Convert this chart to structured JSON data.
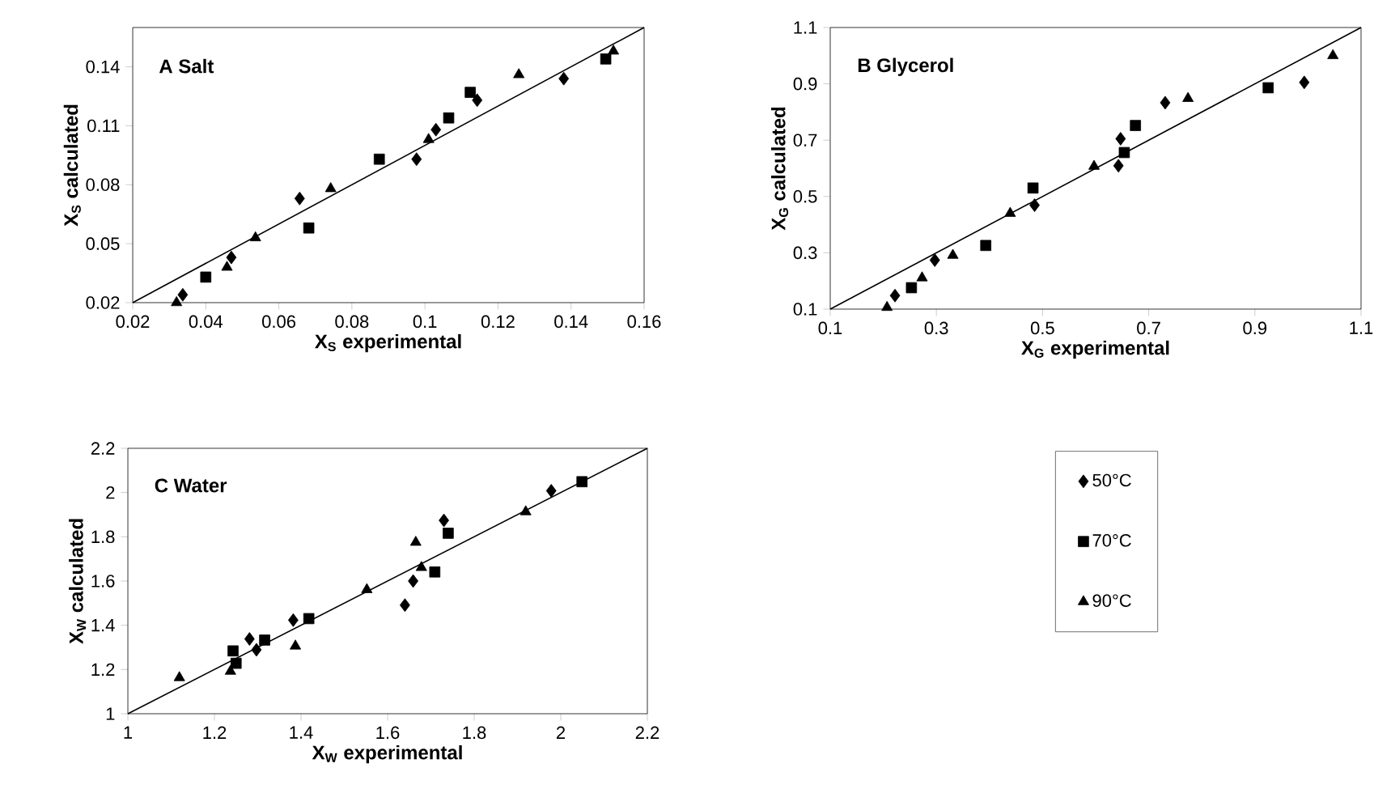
{
  "chart_data": [
    {
      "type": "scatter",
      "title": "A Salt",
      "xlabel": "X$_{S}$ experimental",
      "ylabel": "X$_{S}$ calculated",
      "xlim": [
        0.02,
        0.16
      ],
      "ylim": [
        0.02,
        0.16
      ],
      "xticks": [
        0.02,
        0.04,
        0.06,
        0.08,
        0.1,
        0.12,
        0.14,
        0.16
      ],
      "yticks": [
        0.02,
        0.05,
        0.08,
        0.11,
        0.14
      ],
      "series": [
        {
          "color": "#000000",
          "marker": "diamond",
          "x": [
            0.0337,
            0.047,
            0.0657,
            0.0977,
            0.103,
            0.1143,
            0.138
          ],
          "values": [
            0.024,
            0.043,
            0.073,
            0.093,
            0.108,
            0.123,
            0.134
          ]
        },
        {
          "color": "#000000",
          "marker": "square",
          "x": [
            0.04,
            0.0682,
            0.0875,
            0.1065,
            0.1124,
            0.1495
          ],
          "values": [
            0.033,
            0.058,
            0.093,
            0.114,
            0.127,
            0.144
          ]
        },
        {
          "color": "#000000",
          "marker": "triangle",
          "x": [
            0.032,
            0.0458,
            0.0536,
            0.0742,
            0.101,
            0.1257,
            0.1516
          ],
          "values": [
            0.02,
            0.038,
            0.053,
            0.078,
            0.103,
            0.136,
            0.148
          ]
        },
        {
          "type": "line",
          "color": "#000000",
          "marker": "none",
          "x": [
            0.02,
            0.16
          ],
          "values": [
            0.02,
            0.16
          ]
        }
      ]
    },
    {
      "type": "scatter",
      "title": "B Glycerol",
      "xlabel": "X$_{G}$ experimental",
      "ylabel": "X$_{G}$ calculated",
      "xlim": [
        0.1,
        1.1
      ],
      "ylim": [
        0.1,
        1.1
      ],
      "xticks": [
        0.1,
        0.3,
        0.5,
        0.7,
        0.9,
        1.1
      ],
      "yticks": [
        0.1,
        0.3,
        0.5,
        0.7,
        0.9,
        1.1
      ],
      "series": [
        {
          "color": "#000000",
          "marker": "diamond",
          "x": [
            0.222,
            0.297,
            0.485,
            0.643,
            0.647,
            0.731,
            0.993
          ],
          "values": [
            0.148,
            0.274,
            0.469,
            0.609,
            0.705,
            0.833,
            0.905
          ]
        },
        {
          "color": "#000000",
          "marker": "square",
          "x": [
            0.253,
            0.393,
            0.482,
            0.654,
            0.675,
            0.925
          ],
          "values": [
            0.176,
            0.326,
            0.53,
            0.656,
            0.752,
            0.886
          ]
        },
        {
          "color": "#000000",
          "marker": "triangle",
          "x": [
            0.207,
            0.273,
            0.331,
            0.439,
            0.597,
            0.774,
            1.047
          ],
          "values": [
            0.106,
            0.211,
            0.291,
            0.44,
            0.607,
            0.848,
            1.0
          ]
        },
        {
          "type": "line",
          "color": "#000000",
          "marker": "none",
          "x": [
            0.1,
            1.1
          ],
          "values": [
            0.1,
            1.1
          ]
        }
      ]
    },
    {
      "type": "scatter",
      "title": "C Water",
      "xlabel": "X$_{W}$ experimental",
      "ylabel": "X$_{W}$ calculated",
      "xlim": [
        1,
        2.2
      ],
      "ylim": [
        1,
        2.2
      ],
      "xticks": [
        1,
        1.2,
        1.4,
        1.6,
        1.8,
        2,
        2.2
      ],
      "yticks": [
        1,
        1.2,
        1.4,
        1.6,
        1.8,
        2,
        2.2
      ],
      "legend": "right",
      "series": [
        {
          "name": "50°C",
          "color": "#000000",
          "marker": "diamond",
          "x": [
            1.281,
            1.297,
            1.382,
            1.64,
            1.659,
            1.73,
            1.978
          ],
          "values": [
            1.338,
            1.289,
            1.423,
            1.491,
            1.6,
            1.874,
            2.008
          ]
        },
        {
          "name": "70°C",
          "color": "#000000",
          "marker": "square",
          "x": [
            1.243,
            1.25,
            1.316,
            1.418,
            1.709,
            1.74,
            2.049
          ],
          "values": [
            1.284,
            1.228,
            1.333,
            1.43,
            1.641,
            1.816,
            2.049
          ]
        },
        {
          "name": "90°C",
          "color": "#000000",
          "marker": "triangle",
          "x": [
            1.119,
            1.237,
            1.387,
            1.552,
            1.665,
            1.678,
            1.919
          ],
          "values": [
            1.163,
            1.192,
            1.306,
            1.561,
            1.775,
            1.661,
            1.913
          ]
        },
        {
          "type": "line",
          "color": "#000000",
          "marker": "none",
          "x": [
            1,
            2.2
          ],
          "values": [
            1,
            2.2
          ]
        }
      ]
    }
  ]
}
